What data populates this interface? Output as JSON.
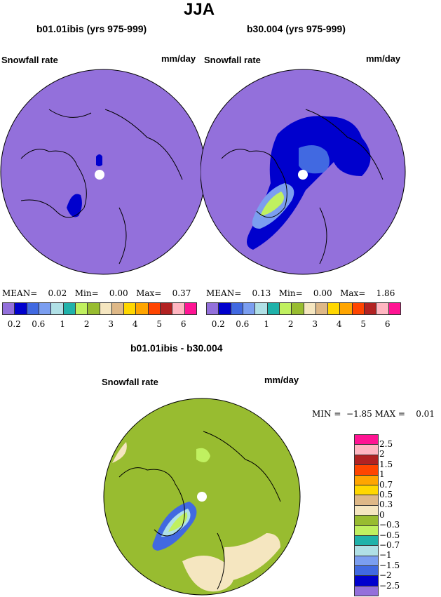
{
  "title": "JJA",
  "panels": [
    {
      "title": "b01.01ibis (yrs 975-999)",
      "variable": "Snowfall rate",
      "units": "mm/day",
      "stats": {
        "mean_label": "MEAN=",
        "mean": "0.02",
        "min_label": "Min=",
        "min": "0.00",
        "max_label": "Max=",
        "max": "0.37"
      }
    },
    {
      "title": "b30.004 (yrs 975-999)",
      "variable": "Snowfall rate",
      "units": "mm/day",
      "stats": {
        "mean_label": "MEAN=",
        "mean": "0.13",
        "min_label": "Min=",
        "min": "0.00",
        "max_label": "Max=",
        "max": "1.86"
      }
    }
  ],
  "colorbar": {
    "colors": [
      "#9370DB",
      "#0000CD",
      "#4169E1",
      "#7B9EF0",
      "#B0E0E6",
      "#20B2AA",
      "#C0F060",
      "#98BC30",
      "#F5E6C0",
      "#DEB887",
      "#FFD700",
      "#FFA500",
      "#FF4500",
      "#B22222",
      "#FFB6C1",
      "#FF1493"
    ],
    "labels": [
      "0.2",
      "0.6",
      "1",
      "2",
      "3",
      "4",
      "5",
      "6"
    ]
  },
  "diff": {
    "title": "b01.01ibis - b30.004",
    "variable": "Snowfall rate",
    "units": "mm/day",
    "stats": "MIN =  −1.85 MAX =    0.01",
    "colorbar": {
      "labels": [
        "2.5",
        "2",
        "1.5",
        "1",
        "0.7",
        "0.5",
        "0.3",
        "0",
        "−0.3",
        "−0.5",
        "−0.7",
        "−1",
        "−1.5",
        "−2",
        "−2.5"
      ]
    }
  }
}
